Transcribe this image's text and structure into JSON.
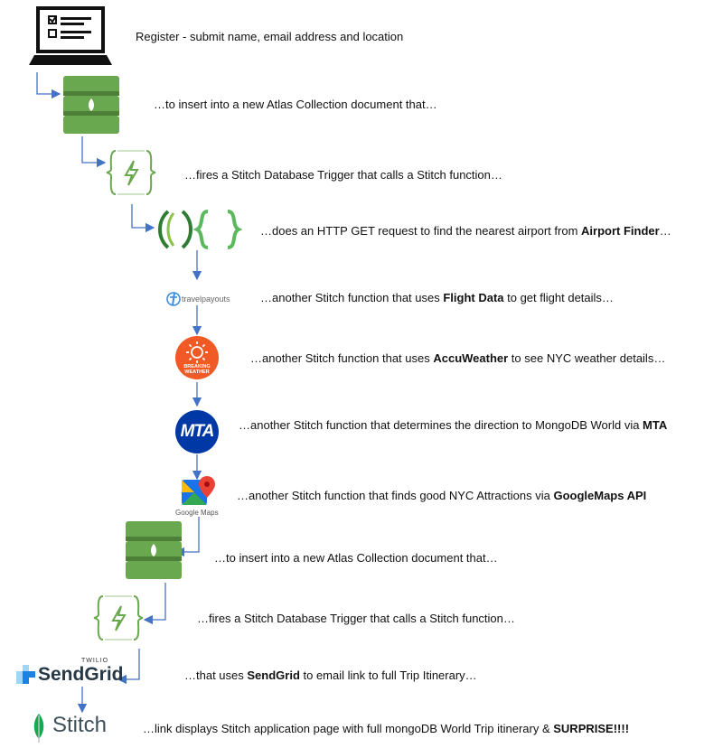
{
  "steps": [
    {
      "id": "register",
      "before": "Register - submit name, email address and location",
      "bold": "",
      "after": ""
    },
    {
      "id": "atlas-insert-1",
      "before": "…to insert into a new Atlas Collection document that…",
      "bold": "",
      "after": ""
    },
    {
      "id": "trigger-1",
      "before": "…fires a Stitch Database Trigger that calls a Stitch function…",
      "bold": "",
      "after": ""
    },
    {
      "id": "http-get",
      "before": "…does an HTTP GET request to find the nearest airport from ",
      "bold": "Airport Finder",
      "after": "…"
    },
    {
      "id": "flight-data",
      "before": "…another Stitch function that uses ",
      "bold": "Flight Data",
      "after": " to get flight details…"
    },
    {
      "id": "accuweather",
      "before": "…another Stitch function that uses ",
      "bold": "AccuWeather",
      "after": " to see NYC weather details…"
    },
    {
      "id": "mta",
      "before": "…another Stitch function that determines the direction to MongoDB World via ",
      "bold": "MTA",
      "after": ""
    },
    {
      "id": "googlemaps",
      "before": "…another Stitch function that finds good NYC Attractions via ",
      "bold": "GoogleMaps API",
      "after": ""
    },
    {
      "id": "atlas-insert-2",
      "before": "…to insert into a new Atlas Collection document that…",
      "bold": "",
      "after": ""
    },
    {
      "id": "trigger-2",
      "before": "…fires a Stitch Database Trigger that calls a Stitch function…",
      "bold": "",
      "after": ""
    },
    {
      "id": "sendgrid",
      "before": "…that uses ",
      "bold": "SendGrid",
      "after": " to email link to full Trip Itinerary…"
    },
    {
      "id": "stitch",
      "before": "…link displays Stitch application page with full mongoDB World Trip itinerary & ",
      "bold": "SURPRISE!!!!",
      "after": ""
    }
  ],
  "logos": {
    "travelpayouts": "travelpayouts",
    "breaking_weather_line1": "BREAKING",
    "breaking_weather_line2": "WEATHER",
    "mta": "MTA",
    "google_maps": "Google Maps",
    "twilio": "TWILIO",
    "sendgrid": "SendGrid",
    "stitch": "Stitch"
  },
  "colors": {
    "arrow": "#4472c4",
    "atlas_green": "#6aa84f",
    "atlas_dark": "#4e7f38",
    "stitch_green": "#5cb85c",
    "accuweather_orange": "#f15a24",
    "mta_blue": "#0039a6",
    "sendgrid_blue": "#1a82e2",
    "mongodb_leaf": "#13aa52"
  }
}
